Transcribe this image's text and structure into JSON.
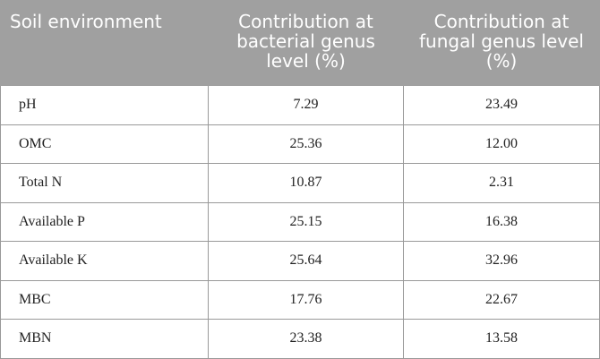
{
  "table": {
    "header": [
      "Soil environment",
      "Contribution at bacterial genus level (%)",
      "Contribution at fungal genus level (%)"
    ],
    "rows": [
      [
        "pH",
        "7.29",
        "23.49"
      ],
      [
        "OMC",
        "25.36",
        "12.00"
      ],
      [
        "Total N",
        "10.87",
        "2.31"
      ],
      [
        "Available P",
        "25.15",
        "16.38"
      ],
      [
        "Available K",
        "25.64",
        "32.96"
      ],
      [
        "MBC",
        "17.76",
        "22.67"
      ],
      [
        "MBN",
        "23.38",
        "13.58"
      ]
    ]
  }
}
